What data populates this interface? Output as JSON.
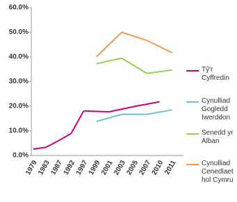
{
  "chart_data": {
    "type": "line",
    "categories": [
      "1979",
      "1983",
      "1987",
      "1992",
      "1997",
      "1999",
      "2001",
      "2003",
      "2005",
      "2007",
      "2010",
      "2011"
    ],
    "series": [
      {
        "name": "Tŷ'r Cyffredin",
        "color": "#cc0077",
        "values": [
          2.6,
          3.3,
          6.0,
          8.9,
          18.1,
          null,
          17.7,
          null,
          19.9,
          null,
          21.8,
          null
        ]
      },
      {
        "name": "Cynulliad Gogledd Iwerddon",
        "color": "#6cc3d5",
        "values": [
          null,
          null,
          null,
          null,
          null,
          13.8,
          null,
          16.7,
          null,
          16.7,
          null,
          18.5
        ]
      },
      {
        "name": "Senedd yr Alban",
        "color": "#92d050",
        "values": [
          null,
          null,
          null,
          null,
          null,
          37.2,
          null,
          39.5,
          null,
          33.3,
          null,
          34.7
        ]
      },
      {
        "name": "Cynulliad Cenedlaethol Cymru",
        "color": "#f79646",
        "values": [
          null,
          null,
          null,
          null,
          null,
          40.0,
          null,
          50.0,
          null,
          46.7,
          null,
          41.7
        ]
      }
    ],
    "ylim": [
      0,
      60
    ],
    "yticks": [
      {
        "value": 0,
        "label": "0.0%"
      },
      {
        "value": 10,
        "label": "10.0%"
      },
      {
        "value": 20,
        "label": "20.0%"
      },
      {
        "value": 30,
        "label": "30.0%"
      },
      {
        "value": 40,
        "label": "40.0%"
      },
      {
        "value": 50,
        "label": "50.0%"
      },
      {
        "value": 60,
        "label": "60.0%"
      }
    ],
    "grid": false
  }
}
